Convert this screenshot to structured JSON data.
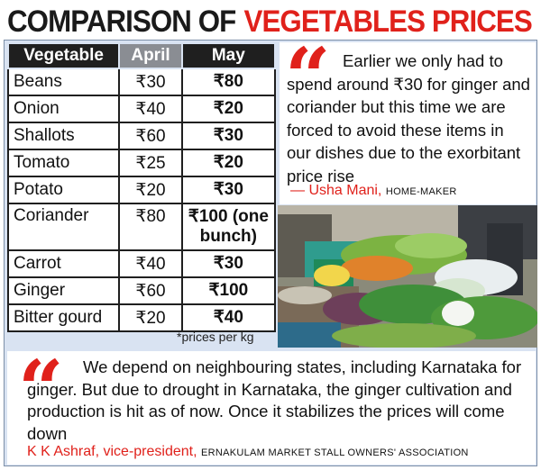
{
  "headline": {
    "black": "COMPARISON OF",
    "red": "VEGETABLES PRICES"
  },
  "table": {
    "headers": [
      "Vegetable",
      "April",
      "May"
    ],
    "rows": [
      {
        "name": "Beans",
        "april": "₹30",
        "may": "₹80"
      },
      {
        "name": "Onion",
        "april": "₹40",
        "may": "₹20"
      },
      {
        "name": "Shallots",
        "april": "₹60",
        "may": "₹30"
      },
      {
        "name": "Tomato",
        "april": "₹25",
        "may": "₹20"
      },
      {
        "name": "Potato",
        "april": "₹20",
        "may": "₹30"
      },
      {
        "name": "Coriander",
        "april": "₹80",
        "may": "₹100 (one bunch)"
      },
      {
        "name": "Carrot",
        "april": "₹40",
        "may": "₹30"
      },
      {
        "name": "Ginger",
        "april": "₹60",
        "may": "₹100"
      },
      {
        "name": "Bitter gourd",
        "april": "₹20",
        "may": "₹40"
      }
    ],
    "footnote": "*prices per kg"
  },
  "quote1": {
    "text": "Earlier we only had to spend around ₹30 for ginger and coriander but this time we are forced to avoid these items in our dishes due to the exorbitant price rise",
    "author": "— Usha Mani,",
    "role": "HOME-MAKER"
  },
  "quote2": {
    "text": "We depend on neighbouring states, including Karnataka for ginger. But due to drought in Karnataka, the ginger cultivation and production is hit as of now. Once it stabilizes the prices will come down",
    "author": "K K Ashraf, vice-president,",
    "role": "ERNAKULAM MARKET STALL OWNERS' ASSOCIATION"
  },
  "colors": {
    "accent_red": "#e0211b",
    "header_dark": "#1f1f1f",
    "header_grey": "#8a8d93",
    "panel_blue": "#d9e3f2"
  },
  "icons": {
    "quote_mark": "“"
  }
}
